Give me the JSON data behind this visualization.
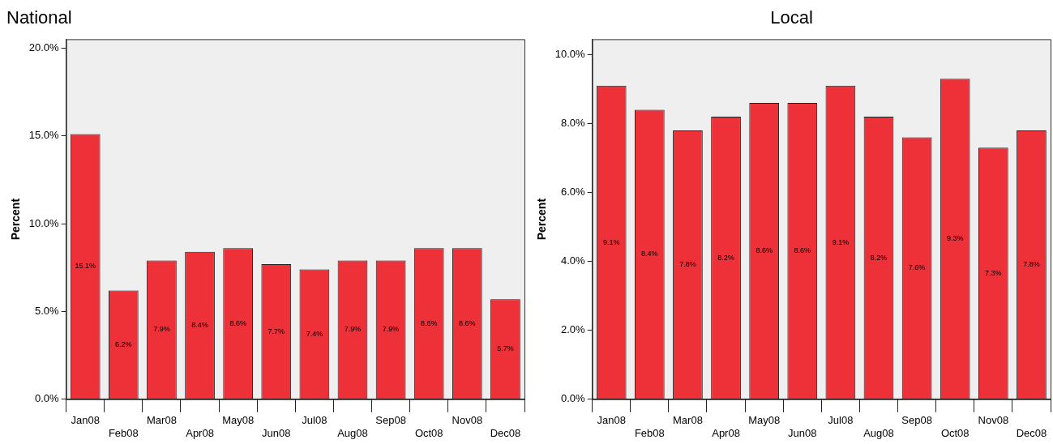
{
  "chart_data": [
    {
      "type": "bar",
      "title": "National",
      "ylabel": "Percent",
      "categories": [
        "Jan08",
        "Feb08",
        "Mar08",
        "Apr08",
        "May08",
        "Jun08",
        "Jul08",
        "Aug08",
        "Sep08",
        "Oct08",
        "Nov08",
        "Dec08"
      ],
      "values": [
        15.1,
        6.2,
        7.9,
        8.4,
        8.6,
        7.7,
        7.4,
        7.9,
        7.9,
        8.6,
        8.6,
        5.7
      ],
      "value_labels": [
        "15.1%",
        "6.2%",
        "7.9%",
        "8.4%",
        "8.6%",
        "7.7%",
        "7.4%",
        "7.9%",
        "7.9%",
        "8.6%",
        "8.6%",
        "5.7%"
      ],
      "color": "#ee3039",
      "ylim": [
        0,
        20.5
      ],
      "yticks": [
        {
          "value": 0,
          "label": "0.0%"
        },
        {
          "value": 5,
          "label": "5.0%"
        },
        {
          "value": 10,
          "label": "10.0%"
        },
        {
          "value": 15,
          "label": "15.0%"
        },
        {
          "value": 20,
          "label": "20.0%"
        }
      ],
      "grid": false,
      "legend": false
    },
    {
      "type": "bar",
      "title": "Local",
      "ylabel": "Percent",
      "categories": [
        "Jan08",
        "Feb08",
        "Mar08",
        "Apr08",
        "May08",
        "Jun08",
        "Jul08",
        "Aug08",
        "Sep08",
        "Oct08",
        "Nov08",
        "Dec08"
      ],
      "values": [
        9.1,
        8.4,
        7.8,
        8.2,
        8.6,
        8.6,
        9.1,
        8.2,
        7.6,
        9.3,
        7.3,
        7.8
      ],
      "value_labels": [
        "9.1%",
        "8.4%",
        "7.8%",
        "8.2%",
        "8.6%",
        "8.6%",
        "9.1%",
        "8.2%",
        "7.6%",
        "9.3%",
        "7.3%",
        "7.8%"
      ],
      "color": "#ee3039",
      "ylim": [
        0,
        10.45
      ],
      "yticks": [
        {
          "value": 0,
          "label": "0.0%"
        },
        {
          "value": 2,
          "label": "2.0%"
        },
        {
          "value": 4,
          "label": "4.0%"
        },
        {
          "value": 6,
          "label": "6.0%"
        },
        {
          "value": 8,
          "label": "8.0%"
        },
        {
          "value": 10,
          "label": "10.0%"
        }
      ],
      "grid": false,
      "legend": false
    }
  ]
}
